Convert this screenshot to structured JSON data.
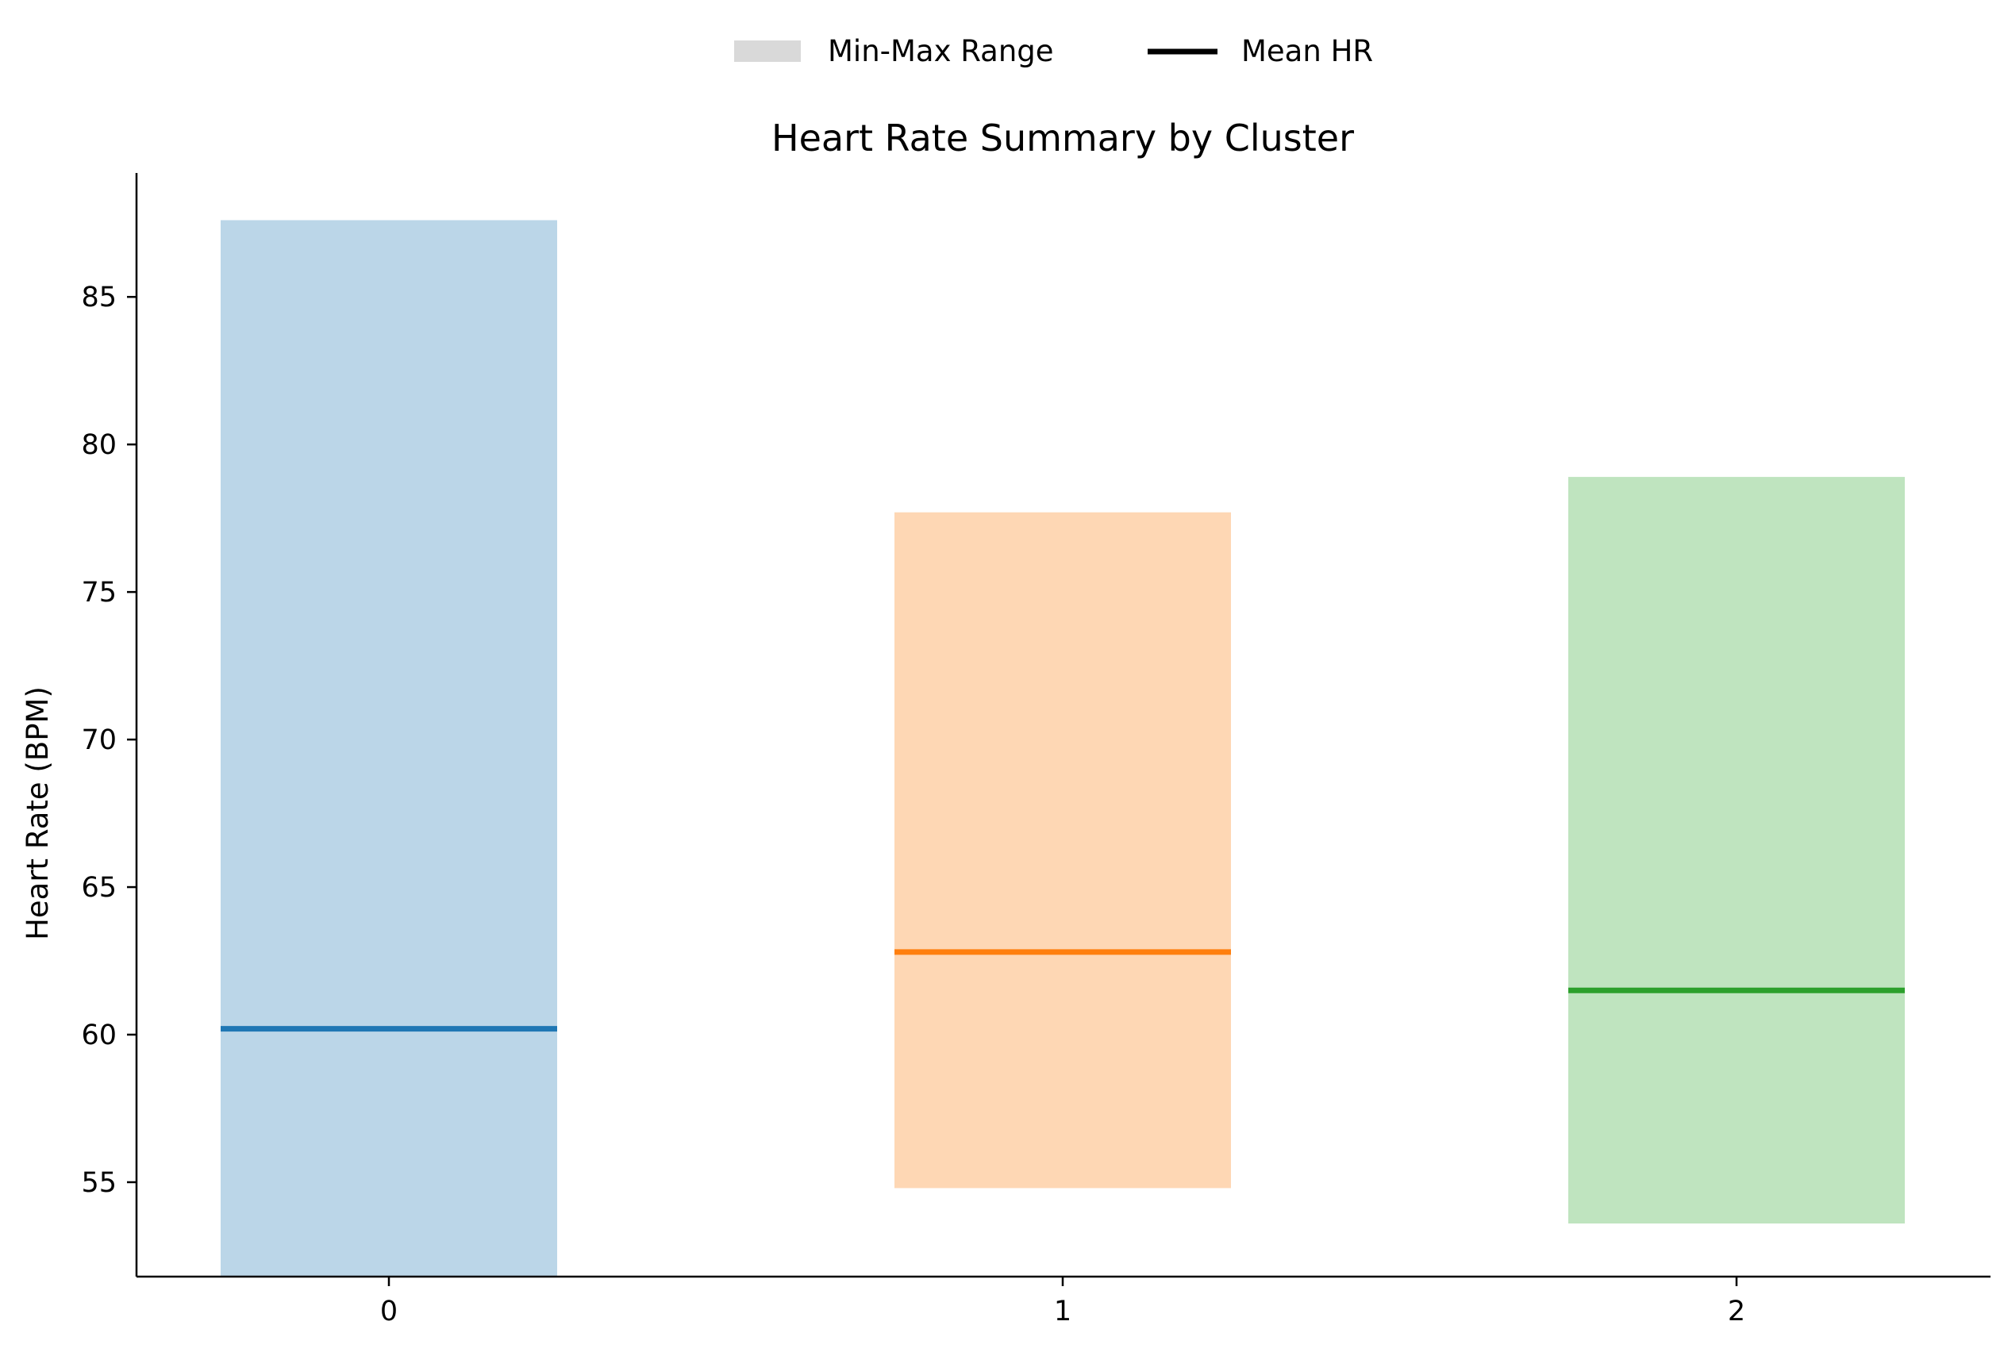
{
  "chart_data": {
    "type": "bar",
    "title": "Heart Rate Summary by Cluster",
    "xlabel": "",
    "ylabel": "Heart Rate (BPM)",
    "categories": [
      "0",
      "1",
      "2"
    ],
    "series": [
      {
        "name": "Min-Max Range",
        "min": [
          51.8,
          54.8,
          53.6
        ],
        "max": [
          87.6,
          77.7,
          78.9
        ]
      },
      {
        "name": "Mean HR",
        "values": [
          60.2,
          62.8,
          61.5
        ]
      }
    ],
    "yticks": [
      "55",
      "60",
      "65",
      "70",
      "75",
      "80",
      "85"
    ],
    "ylim": [
      51.8,
      89.2
    ],
    "grid": false,
    "legend_position": "top-center",
    "colors": {
      "range_fill": [
        "#bbd6e8",
        "#fed7b4",
        "#bfe4bf"
      ],
      "mean_line": [
        "#1f77b4",
        "#ff7f0e",
        "#2ca02c"
      ],
      "legend_range_swatch": "#d9d9d9",
      "legend_mean_swatch": "#000000"
    }
  }
}
